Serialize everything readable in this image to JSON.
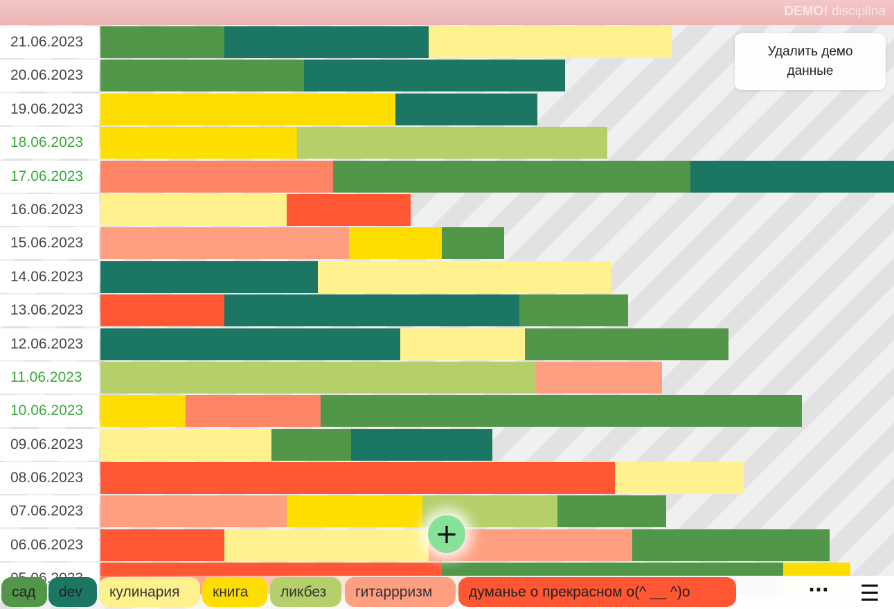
{
  "brand": {
    "demo": "DEMO!",
    "name": "disciplina"
  },
  "delete_demo_button": "Удалить демо данные",
  "add_button": "+",
  "more_button": "···",
  "menu_button": "☰",
  "categories": [
    {
      "id": "sad",
      "label": "сад",
      "color": "#52964a",
      "text": "#222222"
    },
    {
      "id": "dev",
      "label": "dev",
      "color": "#1b7664",
      "text": "#222222"
    },
    {
      "id": "kulinariya",
      "label": "кулинария",
      "color": "#fff28e",
      "text": "#333333"
    },
    {
      "id": "kniga",
      "label": "книга",
      "color": "#fede00",
      "text": "#333333"
    },
    {
      "id": "likbez",
      "label": "ликбез",
      "color": "#b5cf6a",
      "text": "#333333"
    },
    {
      "id": "gitara",
      "label": "гитаррризм",
      "color": "#fe9f82",
      "text": "#333333"
    },
    {
      "id": "dumanye",
      "label": "думанье о прекрасном о(^ __ ^)о",
      "color": "#ff5733",
      "text": "#222222"
    }
  ],
  "days": [
    {
      "date": "21.06.2023",
      "weekend": false,
      "segments": [
        [
          "sad",
          179
        ],
        [
          "dev",
          295
        ],
        [
          "kulinariya",
          351
        ]
      ]
    },
    {
      "date": "20.06.2023",
      "weekend": false,
      "segments": [
        [
          "sad",
          294
        ],
        [
          "dev",
          377
        ]
      ]
    },
    {
      "date": "19.06.2023",
      "weekend": false,
      "segments": [
        [
          "kniga",
          426
        ],
        [
          "dev",
          205
        ]
      ]
    },
    {
      "date": "18.06.2023",
      "weekend": true,
      "segments": [
        [
          "kniga",
          284
        ],
        [
          "likbez",
          448
        ]
      ]
    },
    {
      "date": "17.06.2023",
      "weekend": true,
      "segments": [
        [
          "gitara_dark",
          336
        ],
        [
          "sad",
          516
        ],
        [
          "dev",
          300
        ]
      ]
    },
    {
      "date": "16.06.2023",
      "weekend": false,
      "segments": [
        [
          "kulinariya",
          269
        ],
        [
          "dumanye",
          179
        ]
      ]
    },
    {
      "date": "15.06.2023",
      "weekend": false,
      "segments": [
        [
          "gitara",
          359
        ],
        [
          "kniga",
          134
        ],
        [
          "sad",
          90
        ]
      ]
    },
    {
      "date": "14.06.2023",
      "weekend": false,
      "segments": [
        [
          "dev",
          314
        ],
        [
          "kulinariya",
          424
        ]
      ]
    },
    {
      "date": "13.06.2023",
      "weekend": false,
      "segments": [
        [
          "dumanye",
          179
        ],
        [
          "dev",
          426
        ],
        [
          "sad",
          157
        ]
      ]
    },
    {
      "date": "12.06.2023",
      "weekend": false,
      "segments": [
        [
          "dev",
          433
        ],
        [
          "kulinariya",
          180
        ],
        [
          "sad",
          294
        ]
      ]
    },
    {
      "date": "11.06.2023",
      "weekend": true,
      "segments": [
        [
          "likbez",
          628
        ],
        [
          "gitara",
          183
        ]
      ]
    },
    {
      "date": "10.06.2023",
      "weekend": true,
      "segments": [
        [
          "kniga",
          123
        ],
        [
          "gitara_dark",
          195
        ],
        [
          "sad",
          695
        ]
      ]
    },
    {
      "date": "09.06.2023",
      "weekend": false,
      "segments": [
        [
          "kulinariya",
          247
        ],
        [
          "sad",
          115
        ],
        [
          "dev",
          204
        ]
      ]
    },
    {
      "date": "08.06.2023",
      "weekend": false,
      "segments": [
        [
          "dumanye",
          743
        ],
        [
          "kulinariya",
          186
        ]
      ]
    },
    {
      "date": "07.06.2023",
      "weekend": false,
      "segments": [
        [
          "gitara",
          269
        ],
        [
          "kniga",
          196
        ],
        [
          "likbez",
          195
        ],
        [
          "sad",
          157
        ]
      ]
    },
    {
      "date": "06.06.2023",
      "weekend": false,
      "segments": [
        [
          "dumanye",
          179
        ],
        [
          "kulinariya",
          295
        ],
        [
          "gitara",
          294
        ],
        [
          "sad",
          285
        ]
      ]
    },
    {
      "date": "05.06.2023",
      "weekend": false,
      "segments": [
        [
          "dumanye",
          493
        ],
        [
          "sad",
          493
        ],
        [
          "kniga",
          97
        ]
      ]
    }
  ],
  "extra_colors": {
    "gitara_dark": "#fe8466"
  }
}
